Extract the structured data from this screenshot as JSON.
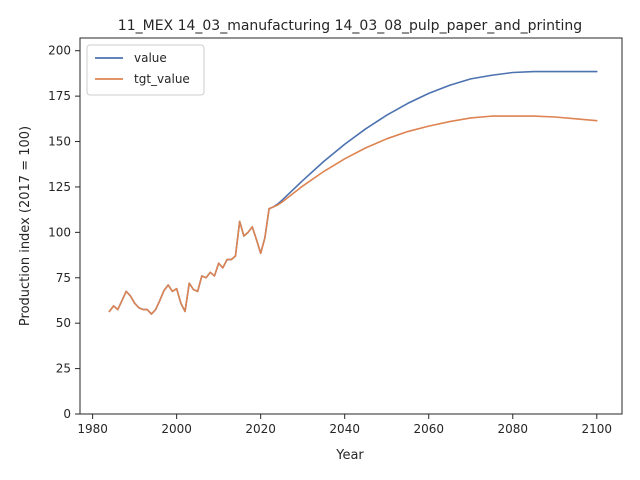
{
  "chart_data": {
    "type": "line",
    "title": "11_MEX 14_03_manufacturing 14_03_08_pulp_paper_and_printing",
    "xlabel": "Year",
    "ylabel": "Production index (2017 = 100)",
    "xlim": [
      1977,
      2106
    ],
    "ylim": [
      0,
      207
    ],
    "xticks": [
      1980,
      2000,
      2020,
      2040,
      2060,
      2080,
      2100
    ],
    "yticks": [
      0,
      25,
      50,
      75,
      100,
      125,
      150,
      175,
      200
    ],
    "grid": false,
    "legend": "top-left",
    "x": [
      1984,
      1985,
      1986,
      1987,
      1988,
      1989,
      1990,
      1991,
      1992,
      1993,
      1994,
      1995,
      1996,
      1997,
      1998,
      1999,
      2000,
      2001,
      2002,
      2003,
      2004,
      2005,
      2006,
      2007,
      2008,
      2009,
      2010,
      2011,
      2012,
      2013,
      2014,
      2015,
      2016,
      2017,
      2018,
      2019,
      2020,
      2021,
      2022,
      2023,
      2024,
      2025,
      2030,
      2035,
      2040,
      2045,
      2050,
      2055,
      2060,
      2065,
      2070,
      2075,
      2080,
      2085,
      2090,
      2095,
      2100
    ],
    "series": [
      {
        "name": "value",
        "color": "#4c72b0",
        "values": [
          56.5,
          59.5,
          57.5,
          62.5,
          67.5,
          65,
          61,
          58.5,
          57.5,
          57.5,
          55,
          57.5,
          62.5,
          68,
          71,
          67.5,
          69,
          61,
          56.5,
          72,
          68.5,
          67.5,
          76,
          75,
          78,
          76,
          83,
          80.5,
          85,
          85,
          87,
          106,
          98,
          100,
          103,
          96,
          88.5,
          97,
          113,
          114,
          115.5,
          117.5,
          128.5,
          139,
          148.5,
          157,
          164.5,
          171,
          176.5,
          181,
          184.5,
          186.5,
          188,
          188.5,
          null,
          null,
          188.5
        ]
      },
      {
        "name": "tgt_value",
        "color": "#dd8452",
        "values": [
          56.5,
          59.5,
          57.5,
          62.5,
          67.5,
          65,
          61,
          58.5,
          57.5,
          57.5,
          55,
          57.5,
          62.5,
          68,
          71,
          67.5,
          69,
          61,
          56.5,
          72,
          68.5,
          67.5,
          76,
          75,
          78,
          76,
          83,
          80.5,
          85,
          85,
          87,
          106,
          98,
          100,
          103,
          96,
          88.5,
          97,
          113,
          114,
          115,
          116.5,
          125.5,
          133.5,
          140.5,
          146.5,
          151.5,
          155.5,
          158.5,
          161,
          163,
          164,
          164,
          164,
          163.5,
          162.5,
          161.5
        ]
      }
    ]
  }
}
